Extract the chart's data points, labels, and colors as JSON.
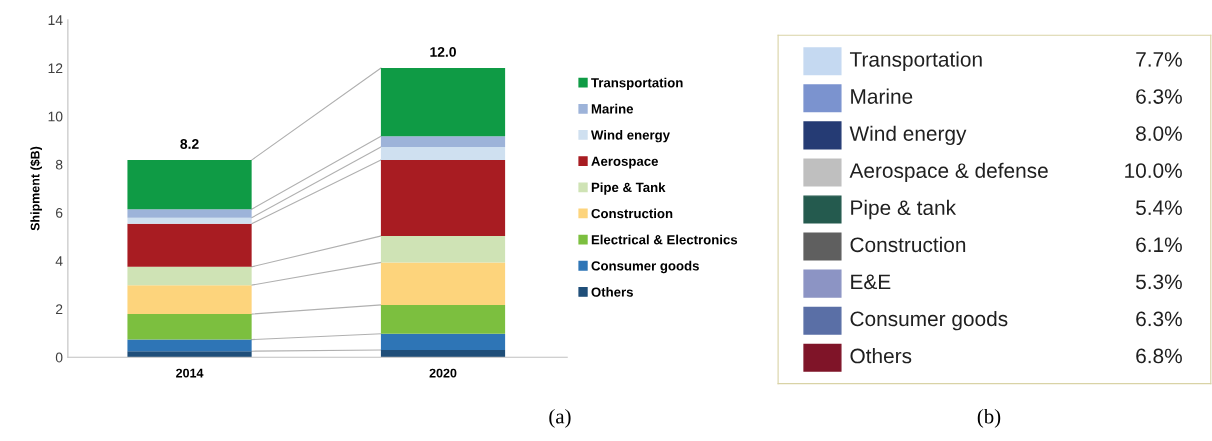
{
  "chart_data": [
    {
      "type": "bar",
      "stacked": true,
      "ylabel": "Shipment ($B)",
      "categories": [
        "2014",
        "2020"
      ],
      "ylim": [
        0,
        14
      ],
      "yticks": [
        0,
        2,
        4,
        6,
        8,
        10,
        12,
        14
      ],
      "grid": false,
      "legend": "right",
      "totals": [
        "8.2",
        "12.0"
      ],
      "annotations": [
        "(a)"
      ],
      "series": [
        {
          "name": "Others",
          "color": "#1f4e79",
          "values": [
            0.25,
            0.3
          ]
        },
        {
          "name": "Consumer goods",
          "color": "#2e75b6",
          "values": [
            0.48,
            0.67
          ]
        },
        {
          "name": "Electrical & Electronics",
          "color": "#7cbf3f",
          "values": [
            1.06,
            1.2
          ]
        },
        {
          "name": "Construction",
          "color": "#fdd47c",
          "values": [
            1.2,
            1.76
          ]
        },
        {
          "name": "Pipe & Tank",
          "color": "#cfe3b5",
          "values": [
            0.76,
            1.1
          ]
        },
        {
          "name": "Aerospace",
          "color": "#a81c22",
          "values": [
            1.79,
            3.15
          ]
        },
        {
          "name": "Wind energy",
          "color": "#cfe0f0",
          "values": [
            0.25,
            0.54
          ]
        },
        {
          "name": "Marine",
          "color": "#9db3d9",
          "values": [
            0.35,
            0.45
          ]
        },
        {
          "name": "Transportation",
          "color": "#0f9b45",
          "values": [
            2.04,
            2.83
          ]
        }
      ]
    },
    {
      "type": "other",
      "annotations": [
        "(b)"
      ],
      "categories": [
        "Transportation",
        "Marine",
        "Wind energy",
        "Aerospace & defense",
        "Pipe & tank",
        "Construction",
        "E&E",
        "Consumer goods",
        "Others"
      ],
      "value_labels": [
        "7.7%",
        "6.3%",
        "8.0%",
        "10.0%",
        "5.4%",
        "6.1%",
        "5.3%",
        "6.3%",
        "6.8%"
      ],
      "colors": [
        "#c5d9f1",
        "#7b93cf",
        "#253b74",
        "#bfbfbf",
        "#245a4e",
        "#5f5f5f",
        "#8c94c4",
        "#5a6fa6",
        "#7f1428"
      ]
    }
  ]
}
